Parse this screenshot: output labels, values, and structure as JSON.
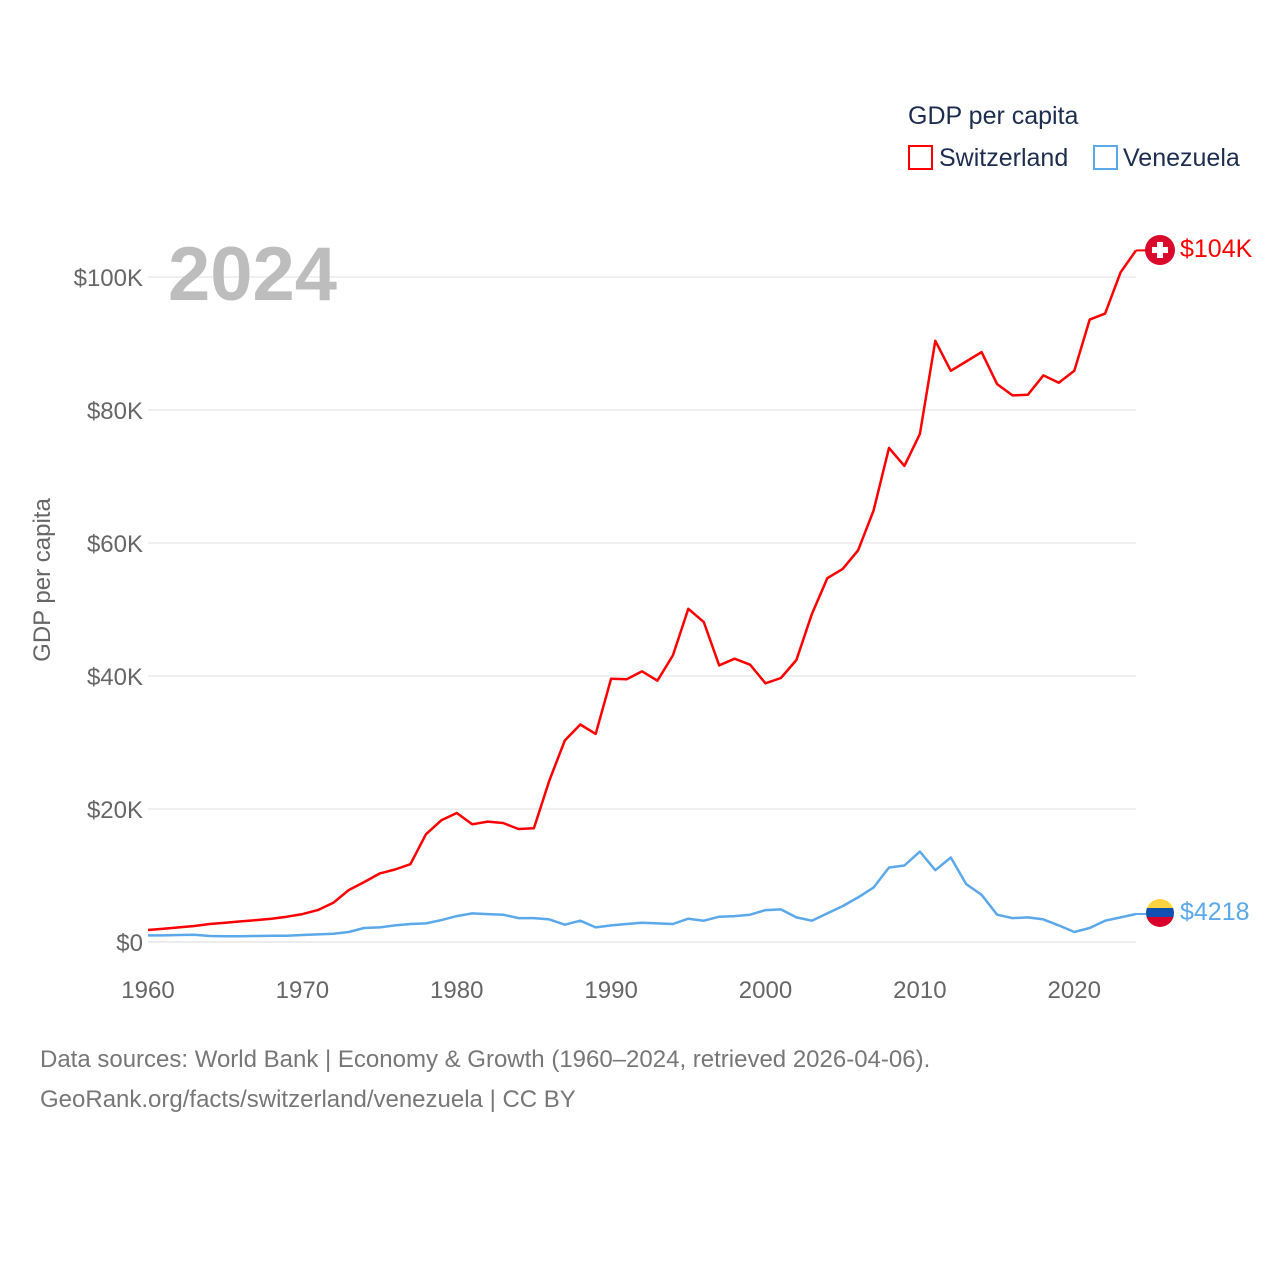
{
  "chart_data": {
    "type": "line",
    "big_year": "2024",
    "ylabel": "GDP per capita",
    "legend": {
      "title": "GDP per capita",
      "placement": "top-right"
    },
    "ylim": [
      0,
      100000
    ],
    "yticks": [
      0,
      20000,
      40000,
      60000,
      80000,
      100000
    ],
    "ytick_labels": [
      "$0",
      "$20K",
      "$40K",
      "$60K",
      "$80K",
      "$100K"
    ],
    "xlim": [
      1960,
      2024
    ],
    "xticks": [
      1960,
      1970,
      1980,
      1990,
      2000,
      2010,
      2020
    ],
    "xtick_labels": [
      "1960",
      "1970",
      "1980",
      "1990",
      "2000",
      "2010",
      "2020"
    ],
    "grid": true,
    "x": [
      1960,
      1961,
      1962,
      1963,
      1964,
      1965,
      1966,
      1967,
      1968,
      1969,
      1970,
      1971,
      1972,
      1973,
      1974,
      1975,
      1976,
      1977,
      1978,
      1979,
      1980,
      1981,
      1982,
      1983,
      1984,
      1985,
      1986,
      1987,
      1988,
      1989,
      1990,
      1991,
      1992,
      1993,
      1994,
      1995,
      1996,
      1997,
      1998,
      1999,
      2000,
      2001,
      2002,
      2003,
      2004,
      2005,
      2006,
      2007,
      2008,
      2009,
      2010,
      2011,
      2012,
      2013,
      2014,
      2015,
      2016,
      2017,
      2018,
      2019,
      2020,
      2021,
      2022,
      2023,
      2024
    ],
    "series": [
      {
        "name": "Switzerland",
        "color": "#ff0000",
        "end_label": "$104K",
        "flag": "switzerland-flag",
        "values": [
          1800,
          2000,
          2200,
          2400,
          2700,
          2900,
          3100,
          3300,
          3500,
          3800,
          4200,
          4800,
          5900,
          7800,
          9000,
          10300,
          10900,
          11700,
          16200,
          18300,
          19400,
          17700,
          18100,
          17900,
          17000,
          17100,
          24300,
          30300,
          32700,
          31300,
          39600,
          39500,
          40700,
          39300,
          43100,
          50100,
          48100,
          41600,
          42600,
          41700,
          38900,
          39700,
          42400,
          49300,
          54700,
          56100,
          58900,
          64900,
          74300,
          71600,
          76400,
          90400,
          85900,
          87300,
          88700,
          83900,
          82200,
          82300,
          85200,
          84100,
          85900,
          93600,
          94500,
          100700,
          104000
        ]
      },
      {
        "name": "Venezuela",
        "color": "#5ba8ea",
        "end_label": "$4218",
        "flag": "venezuela-flag",
        "values": [
          1000,
          1000,
          1050,
          1100,
          900,
          850,
          850,
          900,
          950,
          950,
          1050,
          1150,
          1250,
          1500,
          2100,
          2200,
          2500,
          2700,
          2800,
          3300,
          3900,
          4300,
          4200,
          4100,
          3600,
          3600,
          3400,
          2600,
          3200,
          2200,
          2500,
          2700,
          2900,
          2800,
          2700,
          3500,
          3200,
          3800,
          3900,
          4100,
          4800,
          4900,
          3700,
          3200,
          4300,
          5400,
          6700,
          8200,
          11200,
          11500,
          13600,
          10800,
          12700,
          8700,
          7100,
          4100,
          3600,
          3700,
          3400,
          2500,
          1500,
          2100,
          3200,
          3700,
          4218
        ]
      }
    ]
  },
  "footer": {
    "line1": "Data sources: World Bank | Economy & Growth (1960–2024, retrieved 2026-04-06).",
    "line2": "GeoRank.org/facts/switzerland/venezuela | CC BY"
  }
}
